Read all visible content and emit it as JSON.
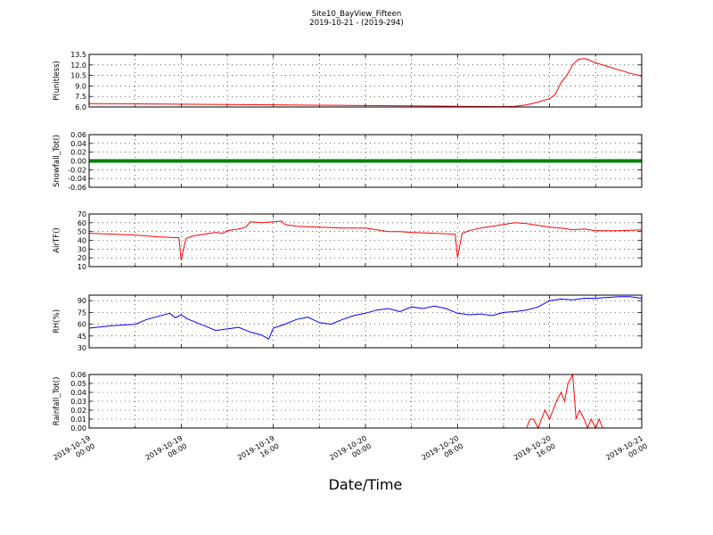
{
  "title": "Site10_BayView_Fifteen",
  "subtitle": "2019-10-21 - (2019-294)",
  "xlabel": "Date/Time",
  "xaxis": {
    "start": "2019-10-19 00:00",
    "end": "2019-10-21 00:00",
    "tick_labels": [
      [
        "2019-10-19",
        "00:00"
      ],
      [
        "2019-10-19",
        "08:00"
      ],
      [
        "2019-10-19",
        "16:00"
      ],
      [
        "2019-10-20",
        "00:00"
      ],
      [
        "2019-10-20",
        "08:00"
      ],
      [
        "2019-10-20",
        "16:00"
      ],
      [
        "2019-10-21",
        "00:00"
      ]
    ]
  },
  "colors": {
    "red": "#ff0000",
    "green": "#008000",
    "blue": "#0000ff"
  },
  "chart_data": [
    {
      "type": "line",
      "ylabel": "P(unitless)",
      "ylim": [
        6.0,
        13.5
      ],
      "yticks": [
        "6.0",
        "7.5",
        "9.0",
        "10.5",
        "12.0",
        "13.5"
      ],
      "grid": true,
      "series": [
        {
          "color": "#ff0000",
          "x_hours": [
            0,
            4,
            8,
            12,
            16,
            20,
            24,
            28,
            32,
            36,
            37,
            38,
            39,
            40,
            40.5,
            41,
            41.5,
            42,
            42.5,
            43,
            43.3,
            43.7,
            44,
            45,
            46,
            47,
            48
          ],
          "values": [
            6.5,
            6.45,
            6.4,
            6.35,
            6.3,
            6.25,
            6.2,
            6.15,
            6.1,
            6.05,
            6.1,
            6.3,
            6.7,
            7.2,
            7.8,
            9.5,
            10.5,
            12.0,
            12.8,
            12.9,
            12.8,
            12.5,
            12.3,
            11.8,
            11.3,
            10.8,
            10.4
          ]
        }
      ]
    },
    {
      "type": "line",
      "ylabel": "Snowfall_Tot()",
      "ylim": [
        -0.06,
        0.06
      ],
      "yticks": [
        "-0.06",
        "-0.04",
        "-0.02",
        "0.00",
        "0.02",
        "0.04",
        "0.06"
      ],
      "grid": true,
      "series": [
        {
          "color": "#008000",
          "x_hours": [
            0,
            48
          ],
          "values": [
            0,
            0
          ]
        }
      ]
    },
    {
      "type": "line",
      "ylabel": "AirTF()",
      "ylim": [
        10,
        70
      ],
      "yticks": [
        "10",
        "20",
        "30",
        "40",
        "50",
        "60",
        "70"
      ],
      "grid": true,
      "series": [
        {
          "color": "#ff0000",
          "x_hours": [
            0,
            2,
            4,
            6,
            7.8,
            8,
            8.4,
            9,
            10,
            11,
            11.6,
            12,
            13,
            13.6,
            14,
            15,
            16,
            16.7,
            17,
            18,
            20,
            22,
            24,
            26,
            27,
            28,
            30,
            31.8,
            32,
            32.4,
            33,
            34,
            35,
            36,
            37,
            38,
            39,
            40,
            41,
            42,
            43,
            44,
            46,
            48
          ],
          "values": [
            48,
            47,
            46,
            44,
            43,
            17,
            42,
            45,
            47,
            49,
            48,
            51,
            53,
            55,
            61,
            60,
            61,
            62,
            58,
            56,
            55,
            54,
            54,
            50,
            50,
            49,
            48,
            47,
            20,
            48,
            51,
            54,
            56,
            58,
            60,
            59,
            57,
            55,
            54,
            52,
            53,
            51,
            51,
            52
          ]
        }
      ]
    },
    {
      "type": "line",
      "ylabel": "RH(%)",
      "ylim": [
        30,
        97
      ],
      "yticks": [
        "30",
        "45",
        "60",
        "75",
        "90"
      ],
      "grid": true,
      "series": [
        {
          "color": "#0000ff",
          "x_hours": [
            0,
            2,
            4,
            5,
            7,
            7.5,
            8,
            8.5,
            9,
            10,
            11,
            12,
            13,
            14,
            15,
            15.6,
            16,
            17,
            18,
            19,
            20,
            21,
            22,
            23,
            24,
            25,
            26,
            27,
            28,
            29,
            30,
            31,
            32,
            33,
            34,
            35,
            36,
            37,
            38,
            39,
            40,
            41,
            42,
            43,
            44,
            45,
            46,
            47,
            48
          ],
          "values": [
            55,
            58,
            60,
            66,
            74,
            68,
            72,
            67,
            64,
            58,
            52,
            54,
            56,
            50,
            46,
            41,
            55,
            60,
            66,
            69,
            62,
            60,
            66,
            71,
            74,
            78,
            80,
            76,
            82,
            80,
            83,
            80,
            74,
            72,
            73,
            71,
            75,
            76,
            78,
            82,
            90,
            92,
            91,
            93,
            93,
            94,
            95,
            95,
            93
          ]
        }
      ]
    },
    {
      "type": "line",
      "ylabel": "Rainfall_Tot()",
      "ylim": [
        0.0,
        0.06
      ],
      "yticks": [
        "0.00",
        "0.01",
        "0.02",
        "0.03",
        "0.04",
        "0.05",
        "0.06"
      ],
      "grid": true,
      "series": [
        {
          "color": "#ff0000",
          "x_hours": [
            0,
            38,
            38.3,
            38.6,
            39,
            39.3,
            39.6,
            40,
            40.3,
            40.6,
            41,
            41.3,
            41.6,
            42,
            42.3,
            42.6,
            43,
            43.3,
            43.6,
            44,
            44.3,
            44.6,
            45,
            45.3,
            45.6,
            48
          ],
          "values": [
            0,
            0,
            0.01,
            0.01,
            0,
            0.01,
            0.02,
            0.01,
            0.02,
            0.03,
            0.04,
            0.03,
            0.05,
            0.06,
            0.01,
            0.02,
            0.01,
            0,
            0.01,
            0,
            0.01,
            0,
            0,
            0,
            0,
            0
          ]
        }
      ]
    }
  ]
}
